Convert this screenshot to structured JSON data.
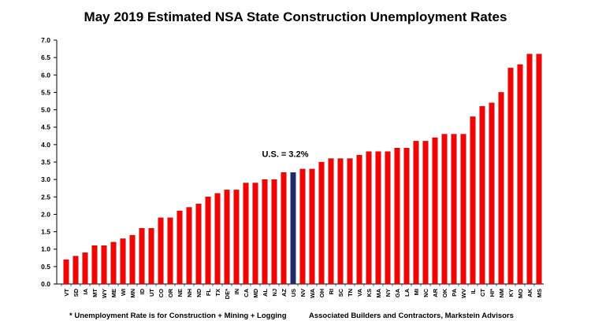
{
  "chart_data": {
    "type": "bar",
    "title": "May 2019 Estimated NSA State Construction Unemployment Rates",
    "xlabel": "",
    "ylabel": "",
    "ylim": [
      0,
      7.0
    ],
    "ytick_step": 0.5,
    "grid": false,
    "categories": [
      "VT",
      "SD",
      "IA",
      "MT",
      "WY",
      "ME",
      "WI",
      "MN",
      "ID",
      "UT",
      "CO",
      "OR",
      "NE",
      "NH",
      "ND",
      "FL",
      "TX",
      "DE*",
      "IN",
      "CA",
      "MD",
      "AL",
      "NJ",
      "AZ",
      "US",
      "NV",
      "WA",
      "OH",
      "RI",
      "SC",
      "TN",
      "VA",
      "KS",
      "MA",
      "NY",
      "GA",
      "LA",
      "MI",
      "NC",
      "AR",
      "OK",
      "PA",
      "WV",
      "IL",
      "CT",
      "HI*",
      "NM",
      "KY",
      "MO",
      "AK",
      "MS"
    ],
    "values": [
      0.7,
      0.8,
      0.9,
      1.1,
      1.1,
      1.2,
      1.3,
      1.4,
      1.6,
      1.6,
      1.9,
      1.9,
      2.1,
      2.2,
      2.3,
      2.5,
      2.6,
      2.7,
      2.7,
      2.9,
      2.9,
      3.0,
      3.0,
      3.2,
      3.2,
      3.3,
      3.3,
      3.5,
      3.6,
      3.6,
      3.6,
      3.7,
      3.8,
      3.8,
      3.8,
      3.9,
      3.9,
      4.1,
      4.1,
      4.2,
      4.3,
      4.3,
      4.3,
      4.8,
      5.1,
      5.2,
      5.5,
      6.2,
      6.3,
      6.6,
      6.6
    ],
    "highlight_category": "US",
    "colors": {
      "bar": "#ff0000",
      "highlight": "#1f2a6b",
      "bar_edge": "#7f0000"
    },
    "annotations": [
      {
        "text": "U.S. = 3.2%",
        "anchor_category": "US"
      }
    ]
  },
  "footnote_left": "* Unemployment Rate is for Construction + Mining + Logging",
  "footnote_right": "Associated Builders and Contractors, Markstein Advisors"
}
